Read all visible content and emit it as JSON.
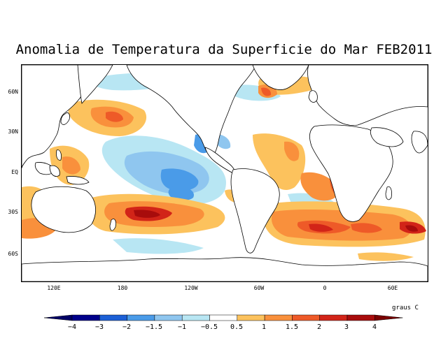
{
  "title": "Anomalia de Temperatura da Superficie do Mar FEB2011",
  "units": "graus C",
  "map": {
    "lat_ticks": [
      "60N",
      "30N",
      "EQ",
      "30S",
      "60S"
    ],
    "lon_ticks": [
      "120E",
      "180",
      "120W",
      "60W",
      "0",
      "60E"
    ],
    "lon_range_deg": [
      90,
      450
    ],
    "lat_range_deg": [
      -80,
      84
    ]
  },
  "colorbar": {
    "labels": [
      "−4",
      "−3",
      "−2",
      "−1.5",
      "−1",
      "−0.5",
      "0.5",
      "1",
      "1.5",
      "2",
      "3",
      "4"
    ],
    "colors": [
      "#00008b",
      "#1c5fd6",
      "#4a9be8",
      "#8fc6ef",
      "#b8e6f3",
      "#ffffff",
      "#fcc25d",
      "#f9903c",
      "#ee5a28",
      "#d22418",
      "#a80c0c"
    ],
    "end_low": "#000066",
    "end_high": "#7a0000"
  },
  "anomaly_colors": {
    "weak_warm": "#fcc25d",
    "warm": "#f9903c",
    "strong_warm": "#ee5a28",
    "very_warm": "#d22418",
    "extreme_warm": "#a80c0c",
    "weak_cool": "#b8e6f3",
    "cool": "#8fc6ef",
    "strong_cool": "#4a9be8",
    "very_cool": "#1c5fd6"
  }
}
